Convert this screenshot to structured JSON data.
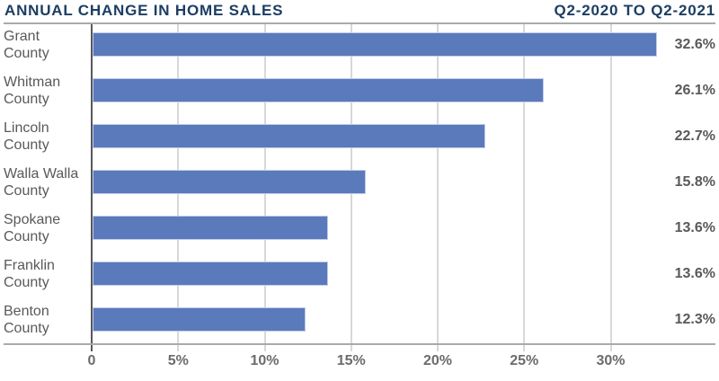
{
  "header": {
    "title_left": "ANNUAL CHANGE IN HOME SALES",
    "title_right": "Q2-2020 TO Q2-2021"
  },
  "chart_data": {
    "type": "bar",
    "orientation": "horizontal",
    "title": "ANNUAL CHANGE IN HOME SALES",
    "subtitle": "Q2-2020 TO Q2-2021",
    "categories": [
      "Grant\nCounty",
      "Whitman\nCounty",
      "Lincoln\nCounty",
      "Walla Walla\nCounty",
      "Spokane\nCounty",
      "Franklin\nCounty",
      "Benton\nCounty"
    ],
    "values": [
      32.6,
      26.1,
      22.7,
      15.8,
      13.6,
      13.6,
      12.3
    ],
    "value_labels": [
      "32.6%",
      "26.1%",
      "22.7%",
      "15.8%",
      "13.6%",
      "13.6%",
      "12.3%"
    ],
    "x_tick_values": [
      0,
      5,
      10,
      15,
      20,
      25,
      30
    ],
    "x_tick_labels": [
      "0",
      "5%",
      "10%",
      "15%",
      "20%",
      "25%",
      "30%"
    ],
    "xlim": [
      0,
      36
    ],
    "xlabel": "",
    "ylabel": "",
    "grid": "vertical",
    "legend": "none",
    "colors": {
      "bar": "#5b7abc",
      "title": "#1c3e63",
      "category_label": "#58595b",
      "value_label": "#58595b",
      "tick_label": "#6a6b6d",
      "gridline": "#d7d8da",
      "axis_line": "#a8aaad",
      "zero_line": "#58595b",
      "background": "#ffffff"
    }
  }
}
